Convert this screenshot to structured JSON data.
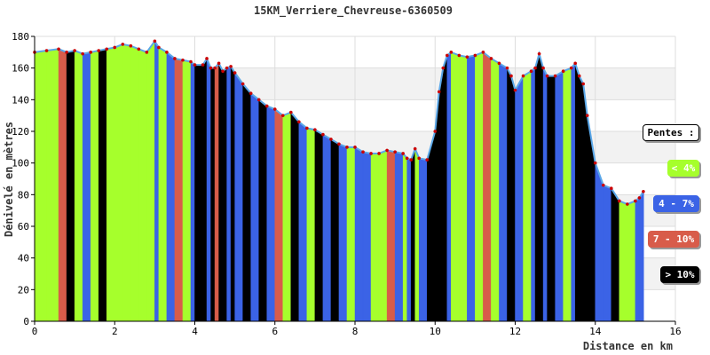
{
  "chart_data": {
    "type": "area",
    "title": "15KM_Verriere_Chevreuse-6360509",
    "xlabel": "Distance en km",
    "ylabel": "Dénivelé en mètres",
    "xlim": [
      0,
      16
    ],
    "ylim": [
      0,
      180
    ],
    "x_ticks": [
      "0",
      "2",
      "4",
      "6",
      "8",
      "10",
      "12",
      "14",
      "16"
    ],
    "y_ticks": [
      "0",
      "20",
      "40",
      "60",
      "80",
      "100",
      "120",
      "140",
      "160",
      "180"
    ],
    "grid": true,
    "legend_placement": "right",
    "series": [
      {
        "x": [
          0,
          0.3,
          0.6,
          0.8,
          1.0,
          1.2,
          1.4,
          1.6,
          1.8,
          2.0,
          2.2,
          2.4,
          2.6,
          2.8,
          3.0,
          3.1,
          3.3,
          3.5,
          3.7,
          3.9,
          4.0,
          4.2,
          4.3,
          4.4,
          4.5,
          4.6,
          4.7,
          4.8,
          4.9,
          5.0,
          5.2,
          5.4,
          5.6,
          5.8,
          6.0,
          6.2,
          6.4,
          6.6,
          6.8,
          7.0,
          7.2,
          7.4,
          7.6,
          7.8,
          8.0,
          8.2,
          8.4,
          8.6,
          8.8,
          9.0,
          9.2,
          9.3,
          9.4,
          9.5,
          9.6,
          9.8,
          10.0,
          10.1,
          10.2,
          10.3,
          10.4,
          10.6,
          10.8,
          11.0,
          11.2,
          11.4,
          11.6,
          11.8,
          11.9,
          12.0,
          12.2,
          12.4,
          12.5,
          12.6,
          12.7,
          12.8,
          13.0,
          13.2,
          13.4,
          13.5,
          13.6,
          13.7,
          13.8,
          14.0,
          14.2,
          14.4,
          14.6,
          14.8,
          15.0,
          15.1,
          15.2
        ],
        "y": [
          170,
          171,
          172,
          170,
          171,
          169,
          170,
          171,
          172,
          173,
          175,
          174,
          172,
          170,
          177,
          173,
          170,
          166,
          165,
          164,
          162,
          162,
          166,
          160,
          160,
          163,
          158,
          160,
          161,
          157,
          150,
          144,
          140,
          136,
          134,
          130,
          132,
          126,
          122,
          121,
          118,
          115,
          112,
          110,
          110,
          107,
          106,
          106,
          108,
          107,
          106,
          103,
          102,
          109,
          103,
          102,
          120,
          145,
          160,
          168,
          170,
          168,
          167,
          168,
          170,
          166,
          163,
          160,
          155,
          146,
          155,
          158,
          160,
          169,
          160,
          155,
          155,
          158,
          160,
          163,
          155,
          150,
          130,
          100,
          86,
          84,
          76,
          74,
          76,
          78,
          82
        ]
      }
    ],
    "slope_colors": {
      "lt4": "#A6FF2C",
      "4to7": "#3B63E6",
      "7to10": "#D85C4A",
      "gt10": "#000000"
    },
    "segment_classes": [
      "lt4",
      "lt4",
      "7to10",
      "gt10",
      "lt4",
      "4to7",
      "lt4",
      "gt10",
      "lt4",
      "lt4",
      "lt4",
      "lt4",
      "lt4",
      "lt4",
      "4to7",
      "lt4",
      "4to7",
      "7to10",
      "lt4",
      "4to7",
      "gt10",
      "gt10",
      "4to7",
      "gt10",
      "7to10",
      "gt10",
      "gt10",
      "4to7",
      "gt10",
      "4to7",
      "gt10",
      "4to7",
      "gt10",
      "4to7",
      "7to10",
      "lt4",
      "gt10",
      "4to7",
      "lt4",
      "gt10",
      "4to7",
      "gt10",
      "4to7",
      "lt4",
      "4to7",
      "4to7",
      "lt4",
      "lt4",
      "7to10",
      "4to7",
      "lt4",
      "4to7",
      "gt10",
      "lt4",
      "4to7",
      "gt10",
      "gt10",
      "gt10",
      "gt10",
      "4to7",
      "lt4",
      "lt4",
      "4to7",
      "lt4",
      "7to10",
      "lt4",
      "4to7",
      "gt10",
      "gt10",
      "4to7",
      "lt4",
      "4to7",
      "gt10",
      "gt10",
      "4to7",
      "gt10",
      "4to7",
      "lt4",
      "4to7",
      "gt10",
      "gt10",
      "gt10",
      "gt10",
      "4to7",
      "4to7",
      "gt10",
      "lt4",
      "lt4",
      "4to7",
      "4to7"
    ],
    "legend": {
      "title": "Pentes :",
      "items": [
        {
          "label": "< 4%",
          "color": "#A6FF2C",
          "text_color": "#ffffff"
        },
        {
          "label": "4 - 7%",
          "color": "#3B63E6",
          "text_color": "#ffffff"
        },
        {
          "label": "7 - 10%",
          "color": "#D85C4A",
          "text_color": "#ffffff"
        },
        {
          "label": "> 10%",
          "color": "#000000",
          "text_color": "#ffffff"
        }
      ]
    },
    "colors": {
      "plot_band": "#F2F2F2",
      "grid": "#DDDDDD",
      "line": "#5AA7E8",
      "marker": "#CC0000"
    }
  }
}
